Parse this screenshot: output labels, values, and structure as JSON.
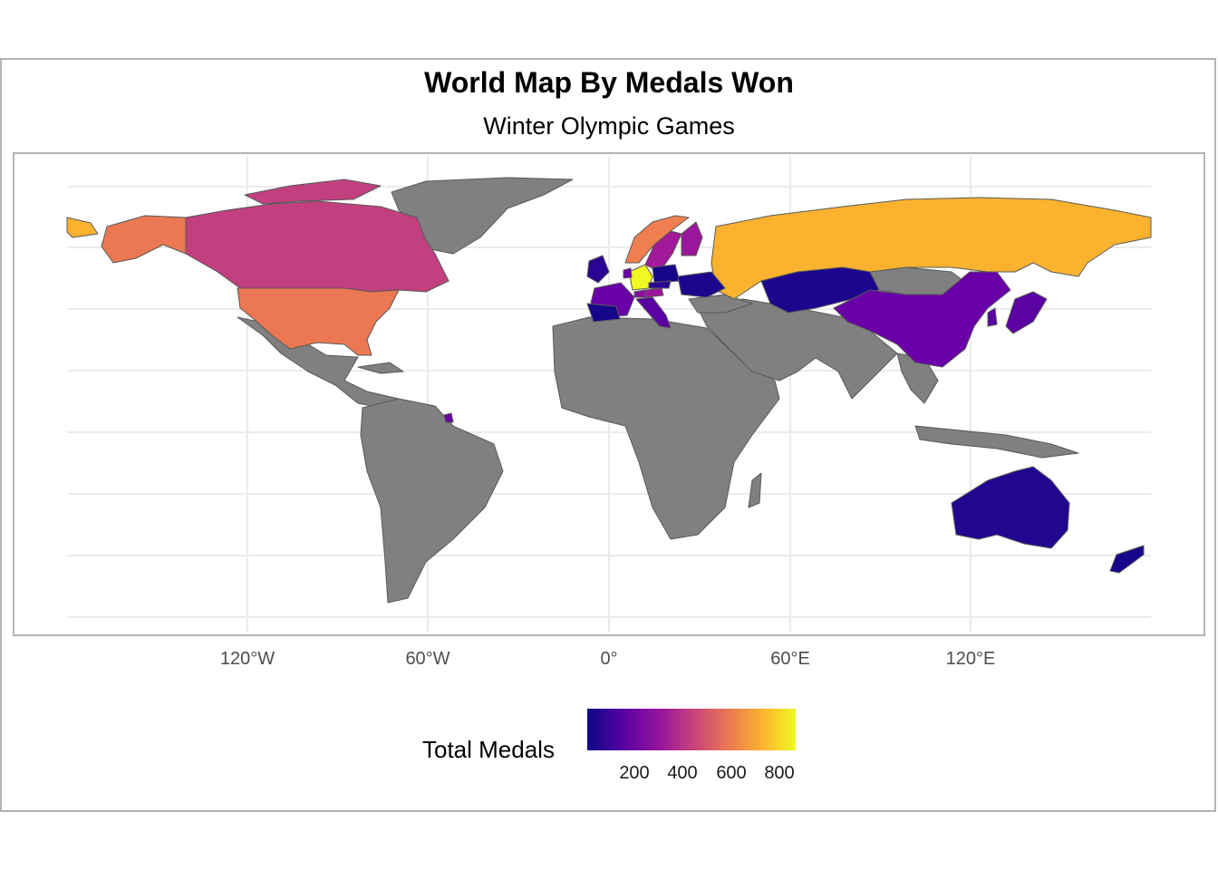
{
  "title": "World Map By Medals Won",
  "subtitle": "Winter Olympic Games",
  "x_axis_ticks": [
    "120°W",
    "60°W",
    "0°",
    "60°E",
    "120°E"
  ],
  "legend": {
    "title": "Total Medals",
    "ticks": [
      "200",
      "400",
      "600",
      "800"
    ]
  },
  "colors": {
    "no_data": "#808080",
    "ocean": "#ffffff",
    "grid": "#ebebeb",
    "border": "#595959",
    "scale": [
      "#0d0887",
      "#5b02a3",
      "#9a179b",
      "#cb4679",
      "#eb7852",
      "#fbb32f",
      "#f0f921"
    ]
  },
  "map_data": {
    "type": "choropleth",
    "metric": "Total Medals",
    "countries": [
      {
        "name": "Germany",
        "color": "#f0f921"
      },
      {
        "name": "Russia",
        "color": "#fbb32f"
      },
      {
        "name": "United States",
        "color": "#eb7852"
      },
      {
        "name": "Alaska",
        "color": "#eb7852"
      },
      {
        "name": "Canada",
        "color": "#c2407f"
      },
      {
        "name": "Norway",
        "color": "#f07f4f"
      },
      {
        "name": "Sweden",
        "color": "#a2199a"
      },
      {
        "name": "Finland",
        "color": "#9a179b"
      },
      {
        "name": "France",
        "color": "#6a00a8"
      },
      {
        "name": "Austria",
        "color": "#9a179b"
      },
      {
        "name": "Italy",
        "color": "#5b02a3"
      },
      {
        "name": "Switzerland",
        "color": "#8a0ca5"
      },
      {
        "name": "Netherlands",
        "color": "#6a00a8"
      },
      {
        "name": "China",
        "color": "#6a00a8"
      },
      {
        "name": "Kazakhstan",
        "color": "#1d068e"
      },
      {
        "name": "Japan",
        "color": "#5b02a3"
      },
      {
        "name": "South Korea",
        "color": "#5b02a3"
      },
      {
        "name": "Australia",
        "color": "#220690"
      },
      {
        "name": "New Zealand",
        "color": "#16078a"
      },
      {
        "name": "United Kingdom",
        "color": "#2a0593"
      },
      {
        "name": "Spain",
        "color": "#16078a"
      },
      {
        "name": "Poland",
        "color": "#16078a"
      },
      {
        "name": "Czechia",
        "color": "#2a0593"
      },
      {
        "name": "Ukraine",
        "color": "#1d068e"
      },
      {
        "name": "French Guiana",
        "color": "#6a00a8"
      }
    ]
  }
}
